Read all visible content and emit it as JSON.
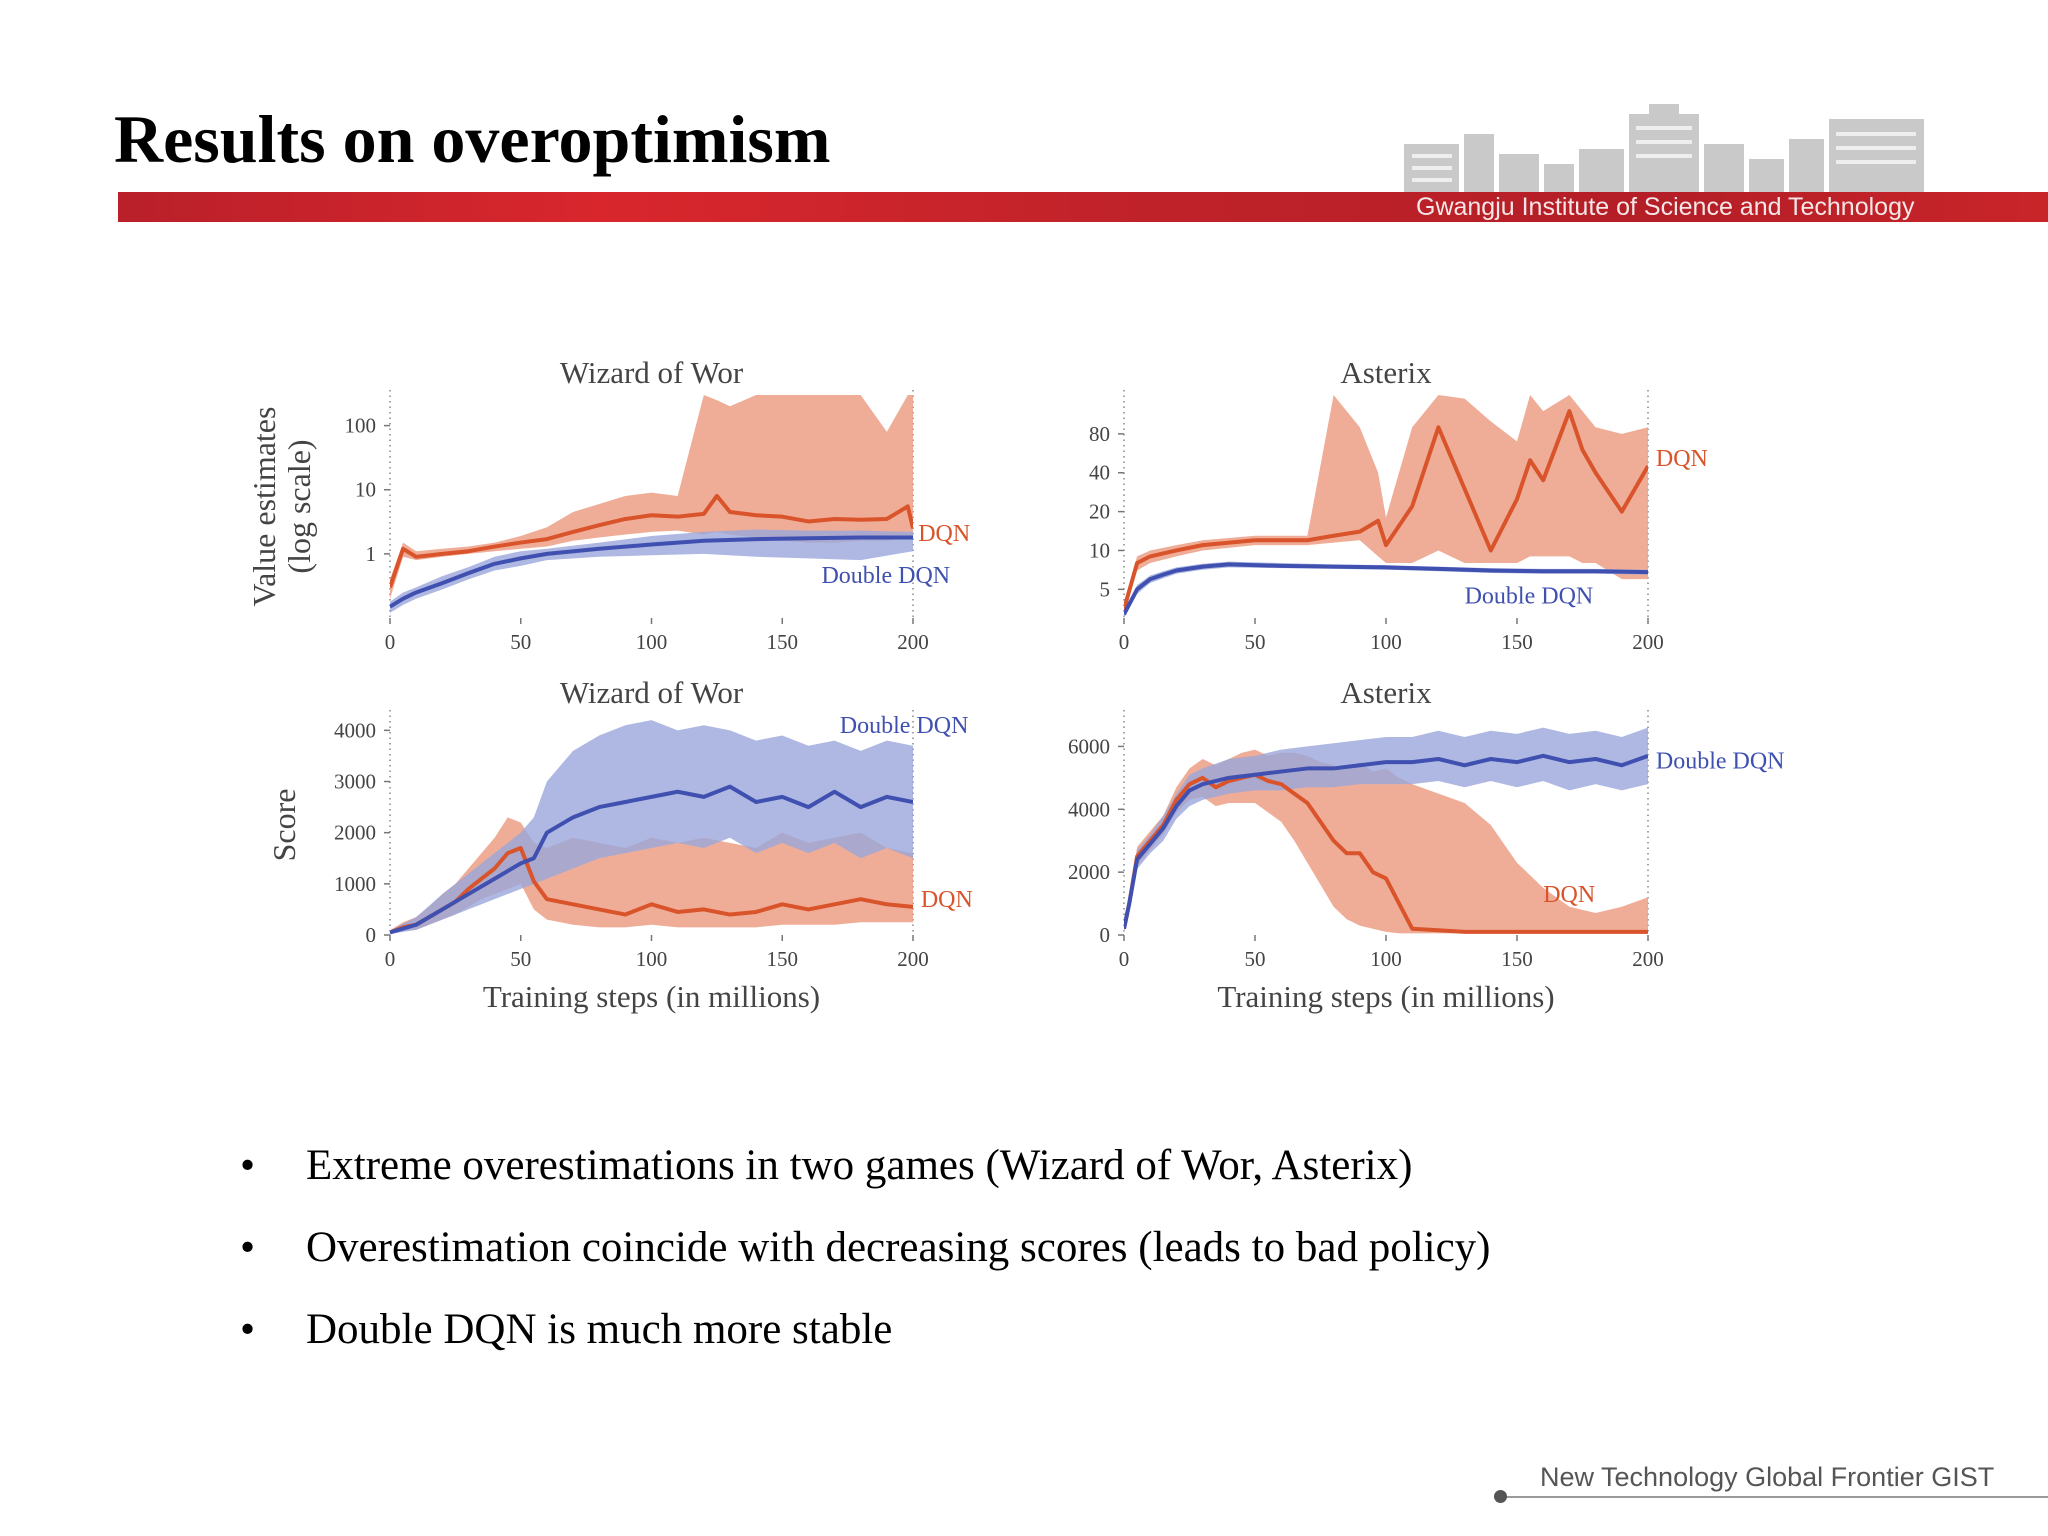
{
  "slide": {
    "title": "Results on overoptimism",
    "institute": "Gwangju Institute of  Science and Technology",
    "footer": "New Technology Global Frontier GIST",
    "bullets": [
      "Extreme overestimations in two games (Wizard of Wor, Asterix)",
      "Overestimation coincide with decreasing scores (leads to bad policy)",
      "Double DQN is much more stable"
    ],
    "bullet_symbol": "•"
  },
  "colors": {
    "dqn": "#d9532b",
    "dqn_band": "#ec9f85",
    "ddqn": "#3f50b0",
    "ddqn_band": "#9aa6db",
    "accent": "#c92529"
  },
  "chart_data": [
    {
      "id": "wow-value",
      "type": "line",
      "title": "Wizard of Wor",
      "ylabel": [
        "Value estimates",
        "(log scale)"
      ],
      "xlabel": "",
      "yscale": "log",
      "xlim": [
        0,
        200
      ],
      "ylim": [
        0.1,
        300
      ],
      "xticks": [
        0,
        50,
        100,
        150,
        200
      ],
      "xtick_labels": [
        "0",
        "50",
        "100",
        "150",
        "200"
      ],
      "yticks": [
        1,
        10,
        100
      ],
      "ytick_labels": [
        "1",
        "10",
        "100"
      ],
      "series": [
        {
          "name": "DQN",
          "label_at": [
            202,
            1.6
          ],
          "x": [
            0,
            5,
            10,
            20,
            30,
            40,
            50,
            60,
            70,
            80,
            90,
            100,
            110,
            120,
            125,
            130,
            140,
            150,
            160,
            170,
            180,
            190,
            198,
            200
          ],
          "values": [
            0.3,
            1.2,
            0.9,
            1.0,
            1.1,
            1.3,
            1.5,
            1.7,
            2.2,
            2.8,
            3.5,
            4.0,
            3.8,
            4.2,
            8.0,
            4.5,
            4.0,
            3.8,
            3.2,
            3.5,
            3.4,
            3.5,
            5.5,
            2.5
          ],
          "band_low": [
            0.2,
            0.9,
            0.8,
            0.9,
            1.0,
            1.1,
            1.2,
            1.3,
            1.6,
            1.8,
            2.0,
            2.2,
            2.3,
            2.0,
            2.2,
            2.0,
            1.8,
            1.6,
            1.5,
            1.5,
            1.6,
            1.6,
            1.8,
            1.6
          ],
          "band_high": [
            0.4,
            1.5,
            1.1,
            1.2,
            1.3,
            1.5,
            1.9,
            2.6,
            4.5,
            6,
            8,
            9,
            8,
            300,
            250,
            200,
            300,
            300,
            300,
            300,
            300,
            80,
            300,
            300
          ]
        },
        {
          "name": "Double DQN",
          "label_at": [
            165,
            0.35
          ],
          "x": [
            0,
            5,
            10,
            20,
            30,
            40,
            50,
            60,
            80,
            100,
            120,
            140,
            160,
            180,
            200
          ],
          "values": [
            0.15,
            0.2,
            0.25,
            0.35,
            0.5,
            0.7,
            0.85,
            1.0,
            1.2,
            1.4,
            1.6,
            1.7,
            1.75,
            1.8,
            1.8
          ],
          "band_low": [
            0.12,
            0.16,
            0.2,
            0.28,
            0.4,
            0.55,
            0.65,
            0.8,
            0.9,
            0.95,
            1.0,
            0.9,
            0.85,
            0.8,
            1.1
          ],
          "band_high": [
            0.18,
            0.25,
            0.3,
            0.45,
            0.62,
            0.9,
            1.1,
            1.2,
            1.5,
            1.9,
            2.2,
            2.4,
            2.3,
            2.3,
            2.2
          ]
        }
      ]
    },
    {
      "id": "asterix-value",
      "type": "line",
      "title": "Asterix",
      "ylabel": [],
      "xlabel": "",
      "yscale": "log",
      "xlim": [
        0,
        200
      ],
      "ylim": [
        3,
        160
      ],
      "xticks": [
        0,
        50,
        100,
        150,
        200
      ],
      "xtick_labels": [
        "0",
        "50",
        "100",
        "150",
        "200"
      ],
      "yticks": [
        5,
        10,
        20,
        40,
        80
      ],
      "ytick_labels": [
        "5",
        "10",
        "20",
        "40",
        "80"
      ],
      "series": [
        {
          "name": "DQN",
          "label_at": [
            203,
            45
          ],
          "x": [
            0,
            5,
            10,
            20,
            30,
            50,
            70,
            80,
            90,
            97,
            100,
            110,
            120,
            130,
            140,
            150,
            155,
            160,
            170,
            175,
            180,
            190,
            200
          ],
          "values": [
            3.5,
            8,
            9,
            10,
            11,
            12,
            12,
            13,
            14,
            17,
            11,
            22,
            90,
            30,
            10,
            25,
            50,
            35,
            120,
            60,
            40,
            20,
            45
          ],
          "band_low": [
            3.2,
            7,
            8,
            9,
            10,
            11,
            11,
            11.5,
            12,
            9,
            8,
            8,
            10,
            8,
            8,
            8,
            9,
            9,
            9,
            8,
            8,
            6,
            6
          ],
          "band_high": [
            4,
            9,
            10,
            11,
            12,
            13,
            13,
            160,
            90,
            40,
            18,
            90,
            160,
            150,
            100,
            70,
            160,
            120,
            160,
            120,
            90,
            80,
            90
          ]
        },
        {
          "name": "Double DQN",
          "label_at": [
            130,
            3.9
          ],
          "x": [
            0,
            5,
            10,
            15,
            20,
            30,
            40,
            60,
            80,
            100,
            120,
            140,
            160,
            180,
            200
          ],
          "values": [
            3.2,
            5,
            6,
            6.5,
            7,
            7.5,
            7.8,
            7.6,
            7.5,
            7.4,
            7.2,
            7.0,
            6.9,
            6.9,
            6.8
          ],
          "band_low": [
            3.0,
            4.6,
            5.6,
            6.1,
            6.6,
            7.1,
            7.4,
            7.3,
            7.2,
            7.1,
            6.9,
            6.7,
            6.6,
            6.6,
            6.5
          ],
          "band_high": [
            3.4,
            5.4,
            6.4,
            6.9,
            7.4,
            7.9,
            8.2,
            8.0,
            7.8,
            7.7,
            7.5,
            7.3,
            7.2,
            7.2,
            7.1
          ]
        }
      ]
    },
    {
      "id": "wow-score",
      "type": "line",
      "title": "Wizard of Wor",
      "ylabel": [
        "Score"
      ],
      "xlabel": "Training steps (in millions)",
      "yscale": "linear",
      "xlim": [
        0,
        200
      ],
      "ylim": [
        0,
        4300
      ],
      "xticks": [
        0,
        50,
        100,
        150,
        200
      ],
      "xtick_labels": [
        "0",
        "50",
        "100",
        "150",
        "200"
      ],
      "yticks": [
        0,
        1000,
        2000,
        3000,
        4000
      ],
      "ytick_labels": [
        "0",
        "1000",
        "2000",
        "3000",
        "4000"
      ],
      "series": [
        {
          "name": "DQN",
          "label_at": [
            203,
            550
          ],
          "x": [
            0,
            5,
            10,
            15,
            20,
            25,
            30,
            35,
            40,
            45,
            50,
            55,
            60,
            70,
            80,
            90,
            100,
            110,
            120,
            130,
            140,
            150,
            160,
            170,
            180,
            190,
            200
          ],
          "values": [
            50,
            150,
            200,
            350,
            500,
            650,
            900,
            1100,
            1300,
            1600,
            1700,
            1050,
            700,
            600,
            500,
            400,
            600,
            450,
            500,
            400,
            450,
            600,
            500,
            600,
            700,
            600,
            550
          ],
          "band_low": [
            20,
            80,
            100,
            200,
            300,
            400,
            550,
            700,
            800,
            900,
            1000,
            500,
            300,
            200,
            150,
            150,
            200,
            150,
            150,
            150,
            150,
            200,
            200,
            200,
            250,
            250,
            250
          ],
          "band_high": [
            90,
            250,
            350,
            550,
            800,
            1000,
            1300,
            1600,
            1900,
            2300,
            2200,
            1800,
            1700,
            1900,
            1800,
            1700,
            1900,
            1800,
            1900,
            1800,
            1700,
            2000,
            1800,
            1900,
            2000,
            1700,
            1600
          ]
        },
        {
          "name": "Double DQN",
          "label_at": [
            172,
            3950
          ],
          "x": [
            0,
            10,
            20,
            30,
            40,
            50,
            55,
            60,
            70,
            80,
            90,
            100,
            110,
            120,
            130,
            140,
            150,
            160,
            170,
            180,
            190,
            200
          ],
          "values": [
            50,
            200,
            500,
            800,
            1100,
            1400,
            1500,
            2000,
            2300,
            2500,
            2600,
            2700,
            2800,
            2700,
            2900,
            2600,
            2700,
            2500,
            2800,
            2500,
            2700,
            2600
          ],
          "band_low": [
            20,
            100,
            300,
            500,
            700,
            900,
            1000,
            1100,
            1300,
            1500,
            1600,
            1700,
            1800,
            1700,
            1900,
            1600,
            1800,
            1600,
            1800,
            1500,
            1700,
            1500
          ],
          "band_high": [
            90,
            350,
            800,
            1200,
            1600,
            2000,
            2300,
            3000,
            3600,
            3900,
            4100,
            4200,
            4000,
            4100,
            4000,
            3800,
            3900,
            3700,
            3800,
            3600,
            3800,
            3700
          ]
        }
      ]
    },
    {
      "id": "asterix-score",
      "type": "line",
      "title": "Asterix",
      "ylabel": [],
      "xlabel": "Training steps (in millions)",
      "yscale": "linear",
      "xlim": [
        0,
        200
      ],
      "ylim": [
        0,
        7000
      ],
      "xticks": [
        0,
        50,
        100,
        150,
        200
      ],
      "xtick_labels": [
        "0",
        "50",
        "100",
        "150",
        "200"
      ],
      "yticks": [
        0,
        2000,
        4000,
        6000
      ],
      "ytick_labels": [
        "0",
        "2000",
        "4000",
        "6000"
      ],
      "series": [
        {
          "name": "DQN",
          "label_at": [
            160,
            1050
          ],
          "x": [
            0,
            2,
            5,
            10,
            15,
            20,
            25,
            30,
            35,
            40,
            45,
            50,
            55,
            60,
            65,
            70,
            75,
            80,
            85,
            90,
            95,
            100,
            105,
            110,
            120,
            130,
            140,
            150,
            160,
            170,
            180,
            190,
            200
          ],
          "values": [
            200,
            1000,
            2500,
            3000,
            3500,
            4300,
            4800,
            5000,
            4700,
            4900,
            5000,
            5100,
            4900,
            4800,
            4500,
            4200,
            3600,
            3000,
            2600,
            2600,
            2000,
            1800,
            1000,
            200,
            150,
            100,
            100,
            100,
            100,
            100,
            100,
            100,
            100
          ],
          "band_low": [
            100,
            800,
            2200,
            2700,
            3200,
            3900,
            4300,
            4400,
            4100,
            4200,
            4200,
            4200,
            3900,
            3600,
            3000,
            2300,
            1600,
            900,
            500,
            300,
            200,
            100,
            50,
            50,
            50,
            50,
            50,
            50,
            50,
            50,
            50,
            50,
            50
          ],
          "band_high": [
            300,
            1200,
            2800,
            3300,
            3800,
            4700,
            5300,
            5600,
            5400,
            5600,
            5800,
            5900,
            5700,
            5800,
            5800,
            5700,
            5500,
            5400,
            5300,
            5500,
            5200,
            5300,
            5000,
            4800,
            4500,
            4200,
            3500,
            2300,
            1500,
            900,
            700,
            900,
            1200
          ]
        },
        {
          "name": "Double DQN",
          "label_at": [
            203,
            5300
          ],
          "x": [
            0,
            2,
            5,
            10,
            15,
            20,
            25,
            30,
            40,
            50,
            60,
            70,
            80,
            90,
            100,
            110,
            120,
            130,
            140,
            150,
            160,
            170,
            180,
            190,
            200
          ],
          "values": [
            200,
            1000,
            2400,
            2900,
            3400,
            4100,
            4600,
            4800,
            5000,
            5100,
            5200,
            5300,
            5300,
            5400,
            5500,
            5500,
            5600,
            5400,
            5600,
            5500,
            5700,
            5500,
            5600,
            5400,
            5700
          ],
          "band_low": [
            100,
            800,
            2100,
            2600,
            3000,
            3700,
            4100,
            4300,
            4500,
            4600,
            4600,
            4700,
            4700,
            4800,
            4800,
            4800,
            4900,
            4700,
            4900,
            4700,
            4900,
            4600,
            4800,
            4600,
            4800
          ],
          "band_high": [
            300,
            1200,
            2700,
            3200,
            3800,
            4500,
            5100,
            5300,
            5600,
            5700,
            5900,
            6000,
            6100,
            6200,
            6300,
            6300,
            6500,
            6300,
            6500,
            6400,
            6600,
            6400,
            6500,
            6300,
            6600
          ]
        }
      ]
    }
  ]
}
